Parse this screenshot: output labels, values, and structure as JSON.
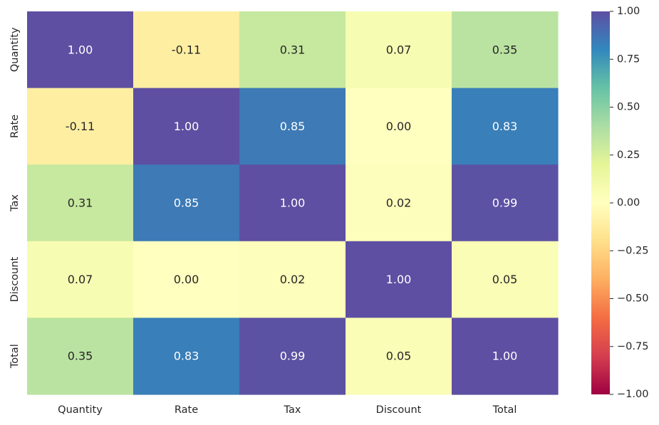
{
  "chart_data": {
    "type": "heatmap",
    "x_labels": [
      "Quantity",
      "Rate",
      "Tax",
      "Discount",
      "Total"
    ],
    "y_labels": [
      "Quantity",
      "Rate",
      "Tax",
      "Discount",
      "Total"
    ],
    "values": [
      [
        1.0,
        -0.11,
        0.31,
        0.07,
        0.35
      ],
      [
        -0.11,
        1.0,
        0.85,
        0.0,
        0.83
      ],
      [
        0.31,
        0.85,
        1.0,
        0.02,
        0.99
      ],
      [
        0.07,
        0.0,
        0.02,
        1.0,
        0.05
      ],
      [
        0.35,
        0.83,
        0.99,
        0.05,
        1.0
      ]
    ],
    "cell_labels": [
      [
        "1.00",
        "-0.11",
        "0.31",
        "0.07",
        "0.35"
      ],
      [
        "-0.11",
        "1.00",
        "0.85",
        "0.00",
        "0.83"
      ],
      [
        "0.31",
        "0.85",
        "1.00",
        "0.02",
        "0.99"
      ],
      [
        "0.07",
        "0.00",
        "0.02",
        "1.00",
        "0.05"
      ],
      [
        "0.35",
        "0.83",
        "0.99",
        "0.05",
        "1.00"
      ]
    ],
    "colormap": "Spectral",
    "vmin": -1.0,
    "vmax": 1.0,
    "colorbar_ticks": [
      1.0,
      0.75,
      0.5,
      0.25,
      0.0,
      -0.25,
      -0.5,
      -0.75,
      -1.0
    ],
    "colorbar_tick_labels": [
      "1.00",
      "0.75",
      "0.50",
      "0.25",
      "0.00",
      "−0.25",
      "−0.50",
      "−0.75",
      "−1.00"
    ],
    "title": "",
    "xlabel": "",
    "ylabel": "",
    "colorbar_placement": "right",
    "grid": false,
    "colors": {
      "text_light": "#ffffff",
      "text_dark": "#262626",
      "tick_label": "#262626"
    }
  }
}
